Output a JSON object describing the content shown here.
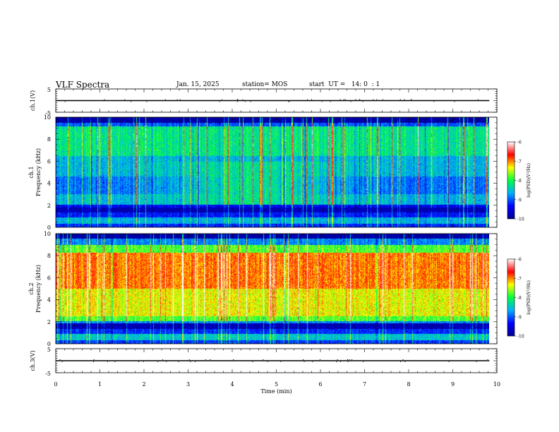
{
  "header": {
    "title": "VLF Spectra",
    "date": "Jan. 15, 2025",
    "station": "station= MOS",
    "start": "start  UT =   14: 0  : 1"
  },
  "chart_data": [
    {
      "type": "line",
      "panel": "ch1-voltage",
      "ylabel": "ch.1(V)",
      "ylim": [
        -5,
        5
      ],
      "yticks": [
        "5",
        "-5"
      ],
      "x": [
        0,
        9.83
      ],
      "y": [
        0,
        0
      ]
    },
    {
      "type": "heatmap",
      "panel": "ch1-spectrogram",
      "ylabel": "ch.1\nFrequency (kHz)",
      "ylim": [
        0,
        10
      ],
      "yticks": [
        "0",
        "2",
        "4",
        "6",
        "8",
        "10"
      ],
      "xlim": [
        0,
        9.83
      ],
      "colorbar": {
        "label": "log(PSD)(V²/Hz)",
        "range": [
          -10,
          -6
        ],
        "ticks": [
          "-6",
          "-7",
          "-8",
          "-9",
          "-10"
        ],
        "colors": [
          "#000090",
          "#0000ff",
          "#00b0ff",
          "#00ff40",
          "#ffff00",
          "#ff0000",
          "#ffffff"
        ]
      }
    },
    {
      "type": "heatmap",
      "panel": "ch2-spectrogram",
      "ylabel": "ch.2\nFrequency (kHz)",
      "ylim": [
        0,
        10
      ],
      "yticks": [
        "0",
        "2",
        "4",
        "6",
        "8",
        "10"
      ],
      "xlim": [
        0,
        9.83
      ],
      "colorbar": {
        "label": "log(PSD)(V²/Hz)",
        "range": [
          -10,
          -6
        ],
        "ticks": [
          "-6",
          "-7",
          "-8",
          "-9",
          "-10"
        ],
        "colors": [
          "#000090",
          "#0000ff",
          "#00b0ff",
          "#00ff40",
          "#ffff00",
          "#ff0000",
          "#ffffff"
        ]
      }
    },
    {
      "type": "line",
      "panel": "ch3-voltage",
      "ylabel": "ch.3(V)",
      "ylim": [
        -5,
        5
      ],
      "yticks": [
        "5",
        "-5"
      ],
      "x": [
        0,
        9.83
      ],
      "y": [
        0,
        0
      ]
    }
  ],
  "xaxis": {
    "label": "Time (min)",
    "range": [
      0,
      10
    ],
    "ticks": [
      "0",
      "1",
      "2",
      "3",
      "4",
      "5",
      "6",
      "7",
      "8",
      "9",
      "10"
    ]
  }
}
